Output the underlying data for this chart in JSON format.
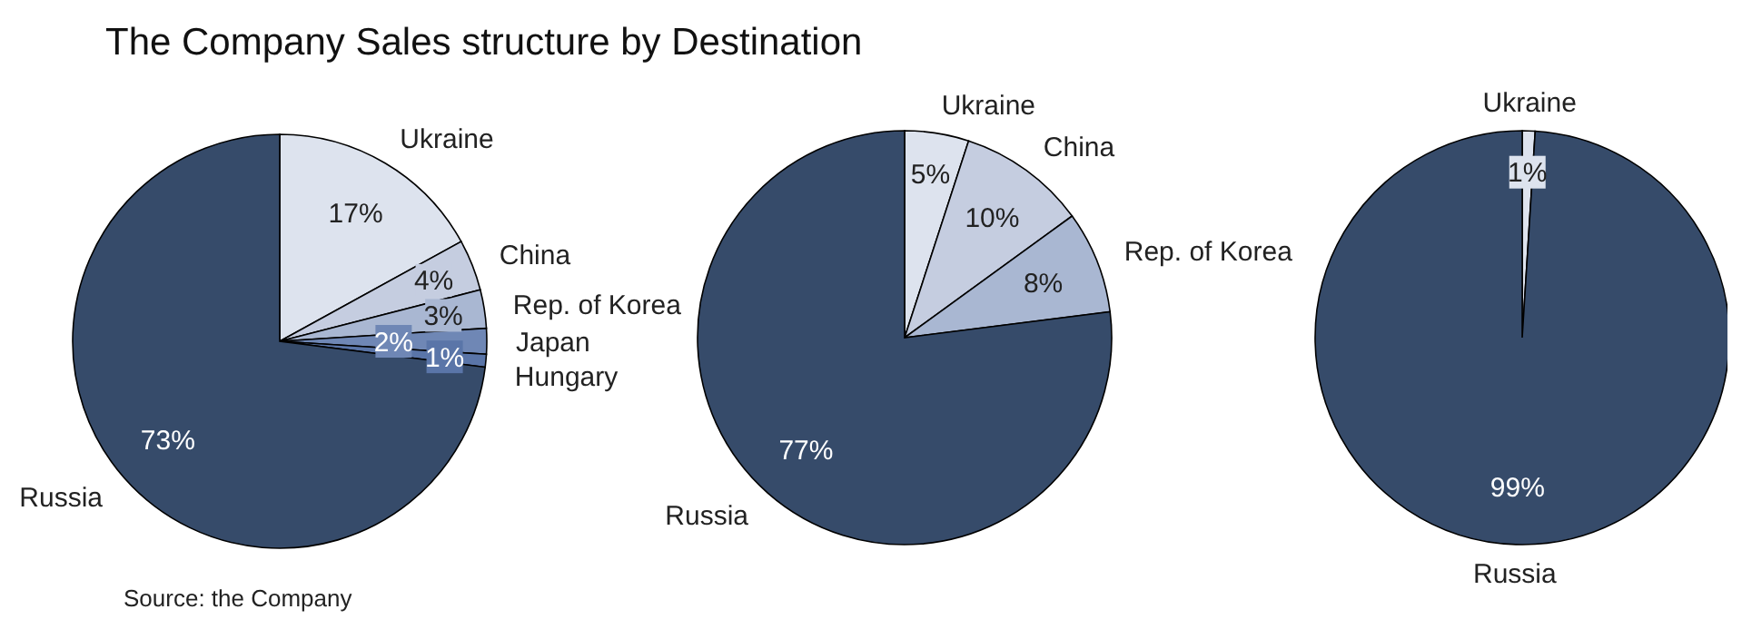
{
  "chart_data": [
    {
      "type": "pie",
      "title": "The Company Sales structure by Destination",
      "annotations": [
        "Source: the Company"
      ],
      "categories": [
        "Ukraine",
        "China",
        "Rep. of Korea",
        "Japan",
        "Hungary",
        "Russia"
      ],
      "values": [
        17,
        4,
        3,
        2,
        1,
        73
      ],
      "value_labels": [
        "17%",
        "4%",
        "3%",
        "2%",
        "1%",
        "73%"
      ],
      "colors": [
        "#dde3ee",
        "#c5cde0",
        "#a9b7d2",
        "#6f87b5",
        "#5a75a8",
        "#364b6a"
      ]
    },
    {
      "type": "pie",
      "categories": [
        "Ukraine",
        "China",
        "Rep. of Korea",
        "Russia"
      ],
      "values": [
        5,
        10,
        8,
        77
      ],
      "value_labels": [
        "5%",
        "10%",
        "8%",
        "77%"
      ],
      "colors": [
        "#dde3ee",
        "#c5cde0",
        "#a9b7d2",
        "#364b6a"
      ]
    },
    {
      "type": "pie",
      "categories": [
        "Ukraine",
        "Russia"
      ],
      "values": [
        1,
        99
      ],
      "value_labels": [
        "1%",
        "99%"
      ],
      "colors": [
        "#dde3ee",
        "#364b6a"
      ]
    }
  ]
}
